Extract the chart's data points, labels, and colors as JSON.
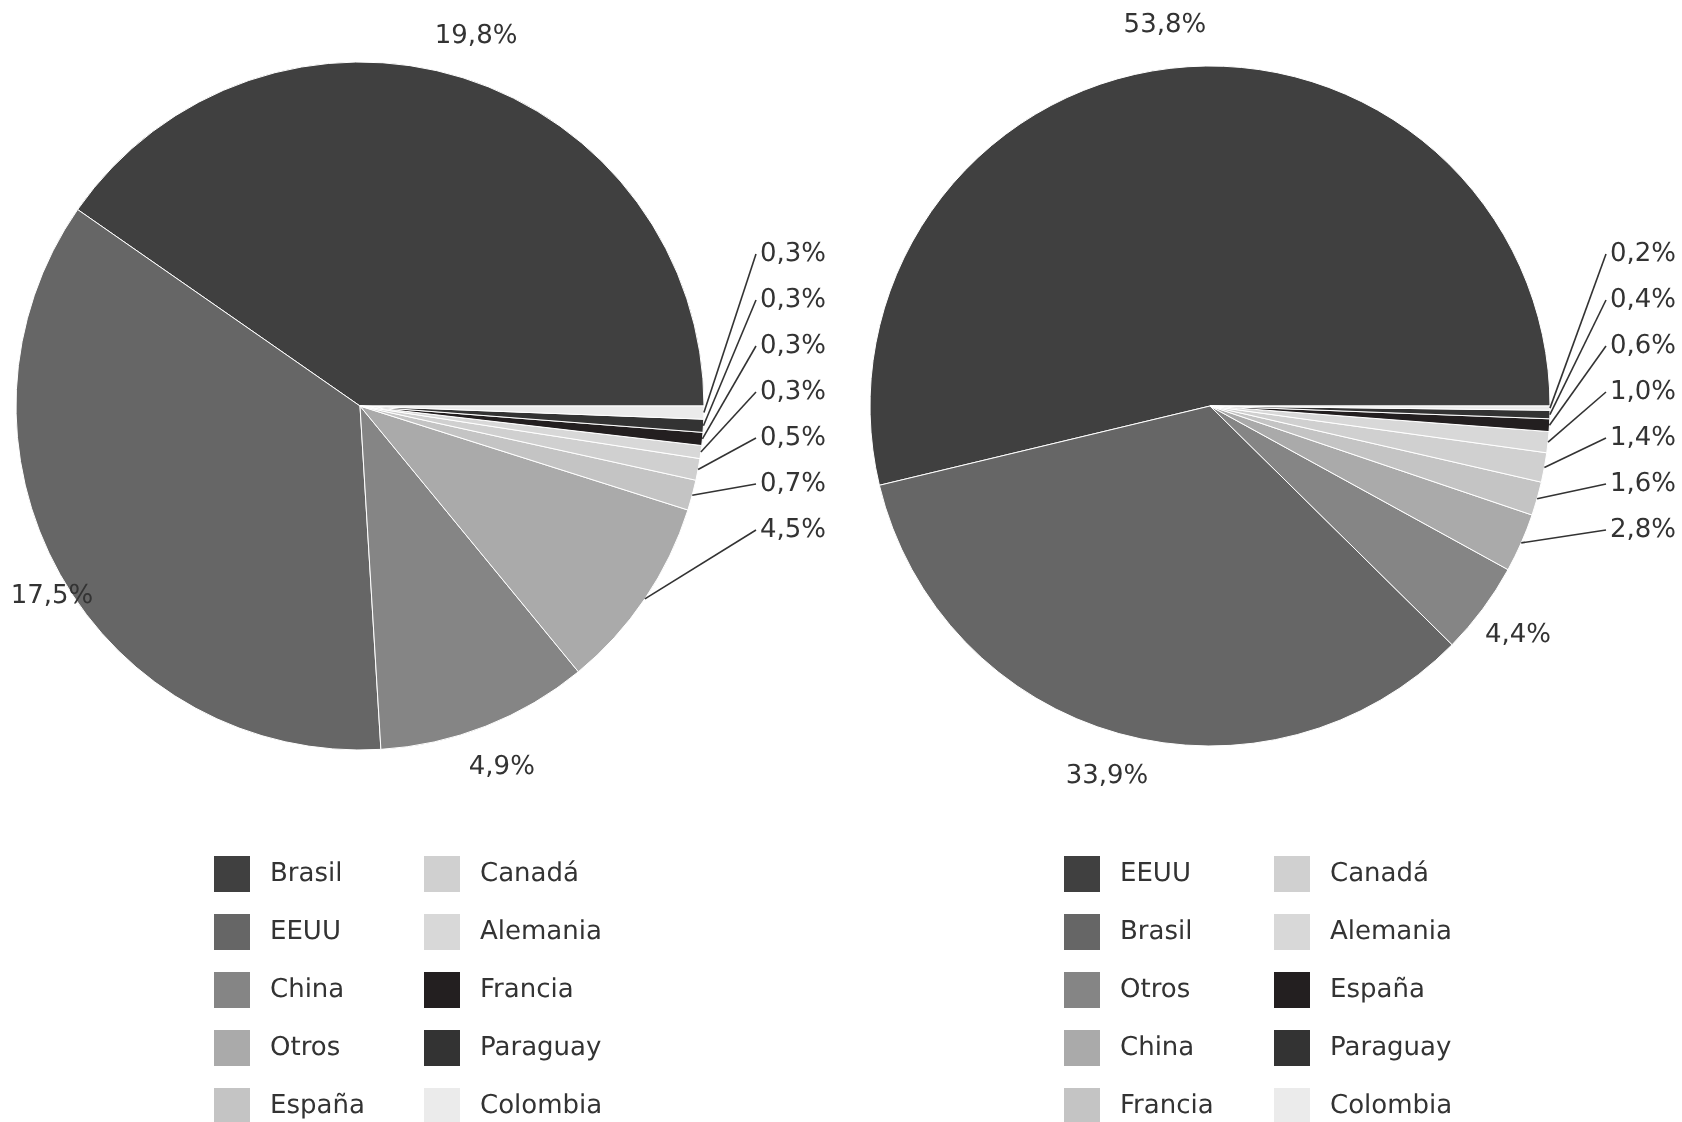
{
  "chart_data": [
    {
      "type": "pie",
      "categories": [
        "Brasil",
        "EEUU",
        "China",
        "Otros",
        "España",
        "Canadá",
        "Alemania",
        "Francia",
        "Paraguay",
        "Colombia"
      ],
      "values": [
        19.8,
        17.5,
        4.9,
        4.5,
        0.7,
        0.5,
        0.3,
        0.3,
        0.3,
        0.3
      ],
      "value_labels": [
        "19,8%",
        "17,5%",
        "4,9%",
        "4,5%",
        "0,7%",
        "0,5%",
        "0,3%",
        "0,3%",
        "0,3%",
        "0,3%"
      ],
      "colors": [
        "#404040",
        "#666666",
        "#858585",
        "#aaaaaa",
        "#c4c4c4",
        "#d0d0d0",
        "#d8d8d8",
        "#231f20",
        "#333333",
        "#ebebeb"
      ],
      "legend": "bottom"
    },
    {
      "type": "pie",
      "categories": [
        "EEUU",
        "Brasil",
        "Otros",
        "China",
        "Francia",
        "Canadá",
        "Alemania",
        "España",
        "Paraguay",
        "Colombia"
      ],
      "values": [
        53.8,
        33.9,
        4.4,
        2.8,
        1.6,
        1.4,
        1.0,
        0.6,
        0.4,
        0.2
      ],
      "value_labels": [
        "53,8%",
        "33,9%",
        "4,4%",
        "2,8%",
        "1,6%",
        "1,4%",
        "1,0%",
        "0,6%",
        "0,4%",
        "0,2%"
      ],
      "colors": [
        "#404040",
        "#666666",
        "#858585",
        "#aaaaaa",
        "#c4c4c4",
        "#d0d0d0",
        "#d8d8d8",
        "#231f20",
        "#333333",
        "#ebebeb"
      ],
      "legend": "bottom"
    }
  ]
}
